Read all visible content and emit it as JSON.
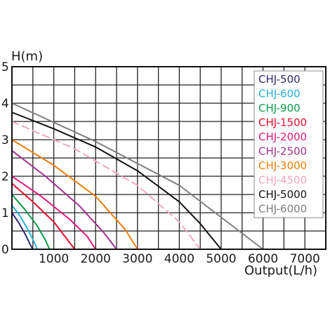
{
  "chart_data": {
    "type": "line",
    "title": "",
    "xlabel": "Output(L/h)",
    "ylabel": "H(m)",
    "xlim": [
      0,
      7500
    ],
    "ylim": [
      0,
      5
    ],
    "x_ticks": [
      1000,
      2000,
      3000,
      4000,
      5000,
      6000,
      7000
    ],
    "x_tick_labels": [
      "1000",
      "2000",
      "3000",
      "4000",
      "5000",
      "6000",
      "7000"
    ],
    "y_ticks": [
      0,
      1,
      2,
      3,
      4,
      5
    ],
    "y_tick_labels": [
      "0",
      "1",
      "2",
      "3",
      "4",
      "5"
    ],
    "grid": true,
    "legend_position": "top-right",
    "series": [
      {
        "name": "CHJ-500",
        "color": "#2b2a6e",
        "style": "solid",
        "x": [
          0,
          150,
          300,
          450,
          500
        ],
        "y": [
          1.0,
          0.75,
          0.45,
          0.1,
          0
        ]
      },
      {
        "name": "CHJ-600",
        "color": "#27b1d6",
        "style": "solid",
        "x": [
          0,
          200,
          400,
          550,
          600
        ],
        "y": [
          1.2,
          0.9,
          0.5,
          0.15,
          0
        ]
      },
      {
        "name": "CHJ-900",
        "color": "#0a9a48",
        "style": "solid",
        "x": [
          0,
          300,
          600,
          800,
          900
        ],
        "y": [
          1.5,
          1.1,
          0.65,
          0.25,
          0
        ]
      },
      {
        "name": "CHJ-1500",
        "color": "#e60d2e",
        "style": "solid",
        "x": [
          0,
          500,
          1000,
          1300,
          1500
        ],
        "y": [
          1.8,
          1.3,
          0.75,
          0.3,
          0
        ]
      },
      {
        "name": "CHJ-2000",
        "color": "#e2187a",
        "style": "solid",
        "x": [
          0,
          700,
          1400,
          1800,
          2000
        ],
        "y": [
          2.0,
          1.45,
          0.8,
          0.35,
          0
        ]
      },
      {
        "name": "CHJ-2500",
        "color": "#a2308f",
        "style": "solid",
        "x": [
          0,
          800,
          1600,
          2200,
          2500
        ],
        "y": [
          2.7,
          2.0,
          1.2,
          0.45,
          0
        ]
      },
      {
        "name": "CHJ-3000",
        "color": "#ef7d0c",
        "style": "solid",
        "x": [
          0,
          1000,
          2000,
          2700,
          3000
        ],
        "y": [
          3.0,
          2.3,
          1.45,
          0.55,
          0
        ]
      },
      {
        "name": "CHJ-4500",
        "color": "#f2a6c2",
        "style": "dashed",
        "x": [
          0,
          1500,
          3000,
          4000,
          4500
        ],
        "y": [
          3.5,
          2.75,
          1.75,
          0.75,
          0
        ]
      },
      {
        "name": "CHJ-5000",
        "color": "#111111",
        "style": "solid",
        "x": [
          0,
          1000,
          2000,
          3000,
          4000,
          4500,
          5000
        ],
        "y": [
          3.75,
          3.3,
          2.8,
          2.15,
          1.3,
          0.7,
          0
        ]
      },
      {
        "name": "CHJ-6000",
        "color": "#7f7f7f",
        "style": "solid",
        "x": [
          0,
          2000,
          4000,
          6000
        ],
        "y": [
          4.0,
          2.95,
          1.75,
          0
        ]
      }
    ]
  }
}
